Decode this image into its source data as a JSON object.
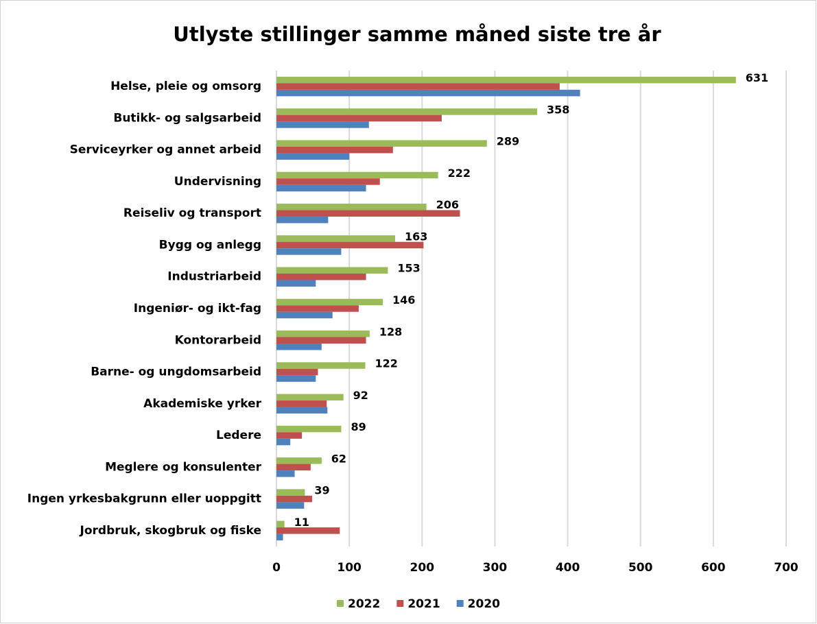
{
  "chart_data": {
    "type": "bar",
    "orientation": "horizontal",
    "title": "Utlyste stillinger samme måned siste tre år",
    "categories": [
      "Helse, pleie og omsorg",
      "Butikk- og salgsarbeid",
      "Serviceyrker og annet arbeid",
      "Undervisning",
      "Reiseliv og transport",
      "Bygg og anlegg",
      "Industriarbeid",
      "Ingeniør- og ikt-fag",
      "Kontorarbeid",
      "Barne- og ungdomsarbeid",
      "Akademiske yrker",
      "Ledere",
      "Meglere og konsulenter",
      "Ingen yrkesbakgrunn eller uoppgitt",
      "Jordbruk, skogbruk og fiske"
    ],
    "series": [
      {
        "name": "2022",
        "color": "#9bbb59",
        "data_labels": true,
        "values": [
          631,
          358,
          289,
          222,
          206,
          163,
          153,
          146,
          128,
          122,
          92,
          89,
          62,
          39,
          11
        ]
      },
      {
        "name": "2021",
        "color": "#c0504d",
        "values": [
          389,
          227,
          160,
          142,
          252,
          202,
          123,
          113,
          123,
          57,
          69,
          35,
          47,
          49,
          87
        ]
      },
      {
        "name": "2020",
        "color": "#4f81bd",
        "values": [
          417,
          127,
          100,
          123,
          71,
          89,
          54,
          77,
          62,
          54,
          70,
          19,
          25,
          38,
          9
        ]
      }
    ],
    "xlim": [
      0,
      700
    ],
    "xticks": [
      0,
      100,
      200,
      300,
      400,
      500,
      600,
      700
    ],
    "grid": true,
    "legend": "bottom"
  }
}
